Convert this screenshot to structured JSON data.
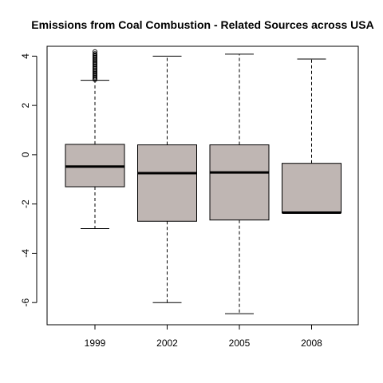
{
  "chart_data": {
    "type": "box",
    "title": "Emissions from Coal Combustion - Related Sources across USA",
    "xlabel": "",
    "ylabel": "",
    "categories": [
      "1999",
      "2002",
      "2005",
      "2008"
    ],
    "y_ticks": [
      "-6",
      "-4",
      "-2",
      "0",
      "2",
      "4"
    ],
    "ylim": [
      -6.9,
      4.4
    ],
    "grid": false,
    "legend": "none",
    "box_fill": "#bfb6b3",
    "boxes": [
      {
        "category": "1999",
        "lower_whisker": -3.0,
        "q1": -1.3,
        "median": -0.48,
        "q3": 0.42,
        "upper_whisker": 3.02,
        "outliers": [
          3.05,
          3.1,
          3.15,
          3.2,
          3.25,
          3.3,
          3.35,
          3.4,
          3.45,
          3.5,
          3.55,
          3.6,
          3.65,
          3.7,
          3.75,
          3.8,
          3.85,
          3.9,
          3.95,
          4.0,
          4.05,
          4.1,
          4.18
        ]
      },
      {
        "category": "2002",
        "lower_whisker": -6.0,
        "q1": -2.7,
        "median": -0.75,
        "q3": 0.4,
        "upper_whisker": 4.0,
        "outliers": []
      },
      {
        "category": "2005",
        "lower_whisker": -6.45,
        "q1": -2.65,
        "median": -0.72,
        "q3": 0.4,
        "upper_whisker": 4.08,
        "outliers": []
      },
      {
        "category": "2008",
        "lower_whisker": -2.35,
        "q1": -2.35,
        "median": -2.35,
        "q3": -0.35,
        "upper_whisker": 3.88,
        "outliers": []
      }
    ]
  }
}
